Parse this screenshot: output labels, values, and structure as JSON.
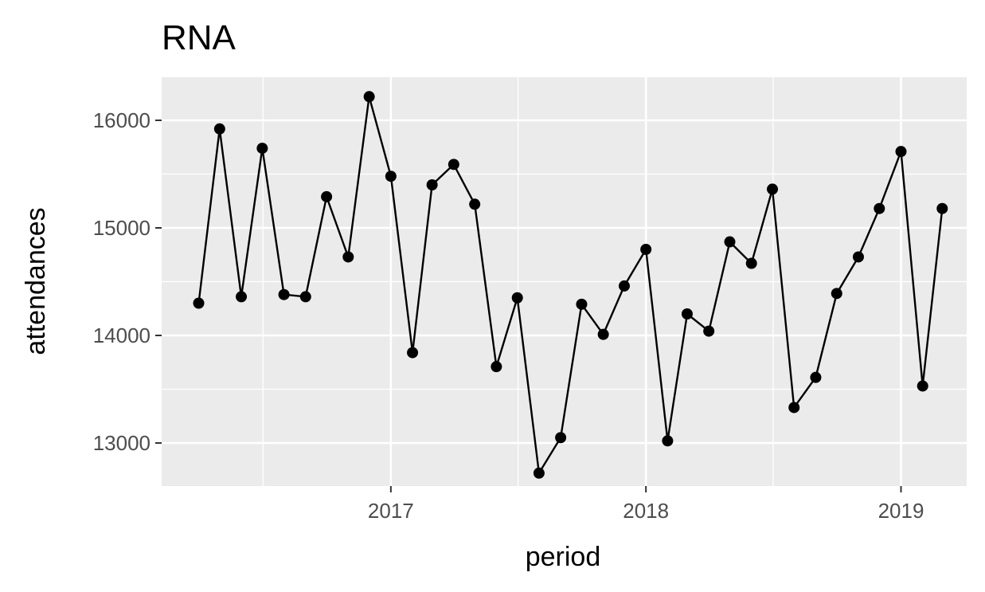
{
  "chart_data": {
    "type": "line",
    "title": "RNA",
    "xlabel": "period",
    "ylabel": "attendances",
    "x_ticks": [
      "2017",
      "2018",
      "2019"
    ],
    "y_ticks": [
      "13000",
      "14000",
      "15000",
      "16000"
    ],
    "ylim": [
      12600,
      16400
    ],
    "xlim": [
      "2016-02-08",
      "2019-04-05"
    ],
    "grid": true,
    "legend": "none",
    "colors": {
      "panel": "#ebebeb",
      "grid": "#ffffff",
      "line": "#000000",
      "tick": "#333333"
    },
    "series": [
      {
        "x": [
          "2016-04-01",
          "2016-05-01",
          "2016-06-01",
          "2016-07-01",
          "2016-08-01",
          "2016-09-01",
          "2016-10-01",
          "2016-11-01",
          "2016-12-01",
          "2017-01-01",
          "2017-02-01",
          "2017-03-01",
          "2017-04-01",
          "2017-05-01",
          "2017-06-01",
          "2017-07-01",
          "2017-08-01",
          "2017-09-01",
          "2017-10-01",
          "2017-11-01",
          "2017-12-01",
          "2018-01-01",
          "2018-02-01",
          "2018-03-01",
          "2018-04-01",
          "2018-05-01",
          "2018-06-01",
          "2018-07-01",
          "2018-08-01",
          "2018-09-01",
          "2018-10-01",
          "2018-11-01",
          "2018-12-01",
          "2019-01-01",
          "2019-02-01",
          "2019-03-01"
        ],
        "values": [
          14300,
          15920,
          14360,
          15740,
          14380,
          14360,
          15290,
          14730,
          16220,
          15480,
          13840,
          15400,
          15590,
          15220,
          13710,
          14350,
          12720,
          13050,
          14290,
          14010,
          14460,
          14800,
          13020,
          14200,
          14040,
          14870,
          14670,
          15360,
          13330,
          13610,
          14390,
          14730,
          15180,
          15710,
          13530,
          15180
        ]
      }
    ]
  }
}
